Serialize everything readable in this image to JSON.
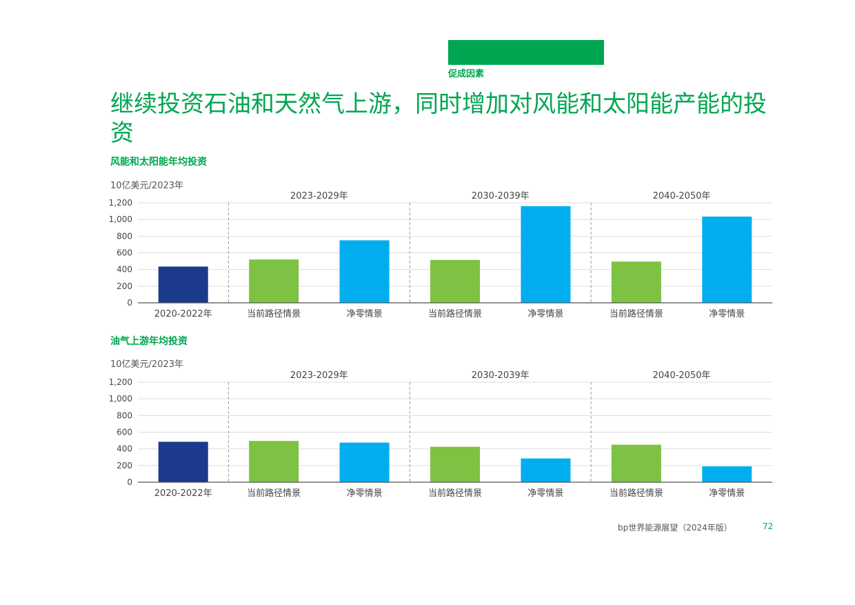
{
  "header": {
    "section_label": "促成因素",
    "title": "继续投资石油和天然气上游，同时增加对风能和太阳能产能的投资"
  },
  "footer": {
    "publication": "bp世界能源展望（2024年版）",
    "page_number": "72"
  },
  "colors": {
    "accent": "#00a651",
    "historical": "#1b3a8c",
    "current_trajectory": "#7dc242",
    "net_zero": "#00aeef"
  },
  "chart_data": [
    {
      "type": "bar",
      "title": "风能和太阳能年均投资",
      "ylabel": "10亿美元/2023年",
      "ylim": [
        0,
        1200
      ],
      "yticks": [
        0,
        200,
        400,
        600,
        800,
        1000,
        1200
      ],
      "grid": true,
      "periods": [
        "2023-2029年",
        "2030-2039年",
        "2040-2050年"
      ],
      "categories": [
        "2020-2022年",
        "当前路径情景",
        "净零情景",
        "当前路径情景",
        "净零情景",
        "当前路径情景",
        "净零情景"
      ],
      "values": [
        435,
        520,
        750,
        515,
        1160,
        495,
        1035
      ]
    },
    {
      "type": "bar",
      "title": "油气上游年均投资",
      "ylabel": "10亿美元/2023年",
      "ylim": [
        0,
        1200
      ],
      "yticks": [
        0,
        200,
        400,
        600,
        800,
        1000,
        1200
      ],
      "grid": true,
      "periods": [
        "2023-2029年",
        "2030-2039年",
        "2040-2050年"
      ],
      "categories": [
        "2020-2022年",
        "当前路径情景",
        "净零情景",
        "当前路径情景",
        "净零情景",
        "当前路径情景",
        "净零情景"
      ],
      "values": [
        485,
        495,
        475,
        425,
        285,
        450,
        190
      ]
    }
  ]
}
